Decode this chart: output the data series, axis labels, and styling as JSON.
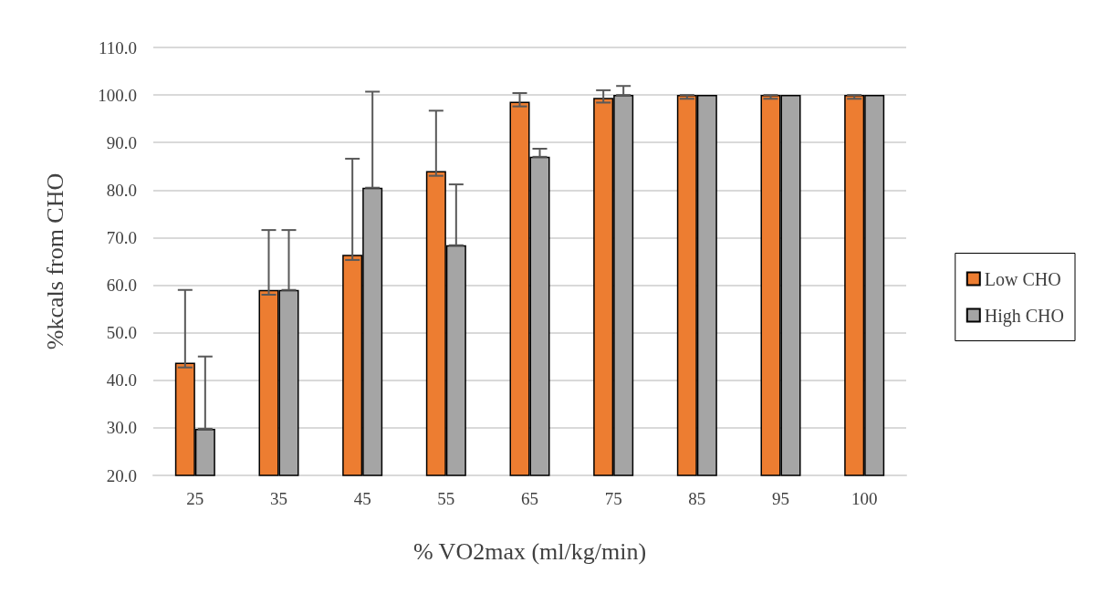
{
  "chart_data": {
    "type": "bar",
    "xlabel": "% VO2max (ml/kg/min)",
    "ylabel": "%kcals from CHO",
    "categories": [
      "25",
      "35",
      "45",
      "55",
      "65",
      "75",
      "85",
      "95",
      "100"
    ],
    "series": [
      {
        "name": "Low CHO",
        "color": "#ed7d31",
        "values": [
          43.7,
          59.0,
          66.4,
          84.0,
          98.6,
          99.4,
          100,
          100,
          100
        ],
        "errors": [
          [
            42.7,
            59.0
          ],
          [
            58.0,
            71.6
          ],
          [
            65.3,
            86.6
          ],
          [
            83.0,
            96.7
          ],
          [
            97.6,
            100.4
          ],
          [
            98.4,
            101.0
          ],
          [
            99.2,
            100
          ],
          [
            99.2,
            100
          ],
          [
            99.2,
            100
          ]
        ]
      },
      {
        "name": "High CHO",
        "color": "#a5a5a5",
        "values": [
          29.8,
          59.0,
          80.5,
          68.4,
          87.0,
          100,
          100,
          100,
          100
        ],
        "errors": [
          [
            29.8,
            45.0
          ],
          [
            59.0,
            71.6
          ],
          [
            80.5,
            100.7
          ],
          [
            68.4,
            81.2
          ],
          [
            87.0,
            88.7
          ],
          [
            100,
            101.9
          ],
          null,
          null,
          null
        ]
      }
    ],
    "ylim": [
      20,
      110
    ],
    "yticks": [
      {
        "value": 20,
        "label": "20.0"
      },
      {
        "value": 30,
        "label": "30.0"
      },
      {
        "value": 40,
        "label": "40.0"
      },
      {
        "value": 50,
        "label": "50.0"
      },
      {
        "value": 60,
        "label": "60.0"
      },
      {
        "value": 70,
        "label": "70.0"
      },
      {
        "value": 80,
        "label": "80.0"
      },
      {
        "value": 90,
        "label": "90.0"
      },
      {
        "value": 100,
        "label": "100.0"
      },
      {
        "value": 110,
        "label": "110.0"
      }
    ],
    "grid": "y",
    "legend": "right"
  }
}
